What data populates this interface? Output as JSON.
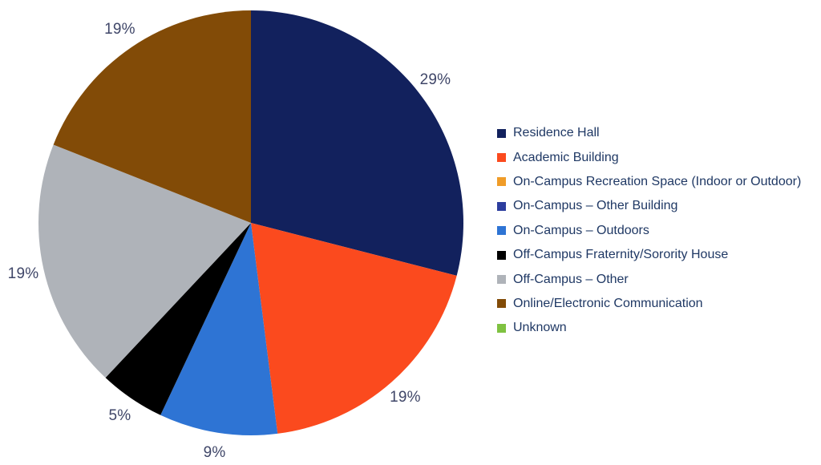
{
  "figure": {
    "background": "#FFFFFF"
  },
  "chart_data": {
    "type": "pie",
    "title": "",
    "unit": "%",
    "start_angle_deg": 0,
    "direction": "clockwise",
    "legend_position": "right",
    "data_label_color": "#3F4668",
    "legend_text_color": "#1F3864",
    "series": [
      {
        "label": "Residence Hall",
        "value": 29,
        "percent_label": "29%",
        "color": "#12215D"
      },
      {
        "label": "Academic Building",
        "value": 19,
        "percent_label": "19%",
        "color": "#FB4A1E"
      },
      {
        "label": "On-Campus Recreation Space (Indoor or Outdoor)",
        "value": 0,
        "percent_label": "",
        "color": "#F09C28"
      },
      {
        "label": "On-Campus – Other Building",
        "value": 0,
        "percent_label": "",
        "color": "#2C3D9E"
      },
      {
        "label": "On-Campus – Outdoors",
        "value": 9,
        "percent_label": "9%",
        "color": "#2E74D4"
      },
      {
        "label": "Off-Campus Fraternity/Sorority House",
        "value": 5,
        "percent_label": "5%",
        "color": "#000000"
      },
      {
        "label": "Off-Campus – Other",
        "value": 19,
        "percent_label": "19%",
        "color": "#AFB3B9"
      },
      {
        "label": "Online/Electronic Communication",
        "value": 19,
        "percent_label": "19%",
        "color": "#824B07"
      },
      {
        "label": "Unknown",
        "value": 0,
        "percent_label": "",
        "color": "#7FC241"
      }
    ]
  }
}
